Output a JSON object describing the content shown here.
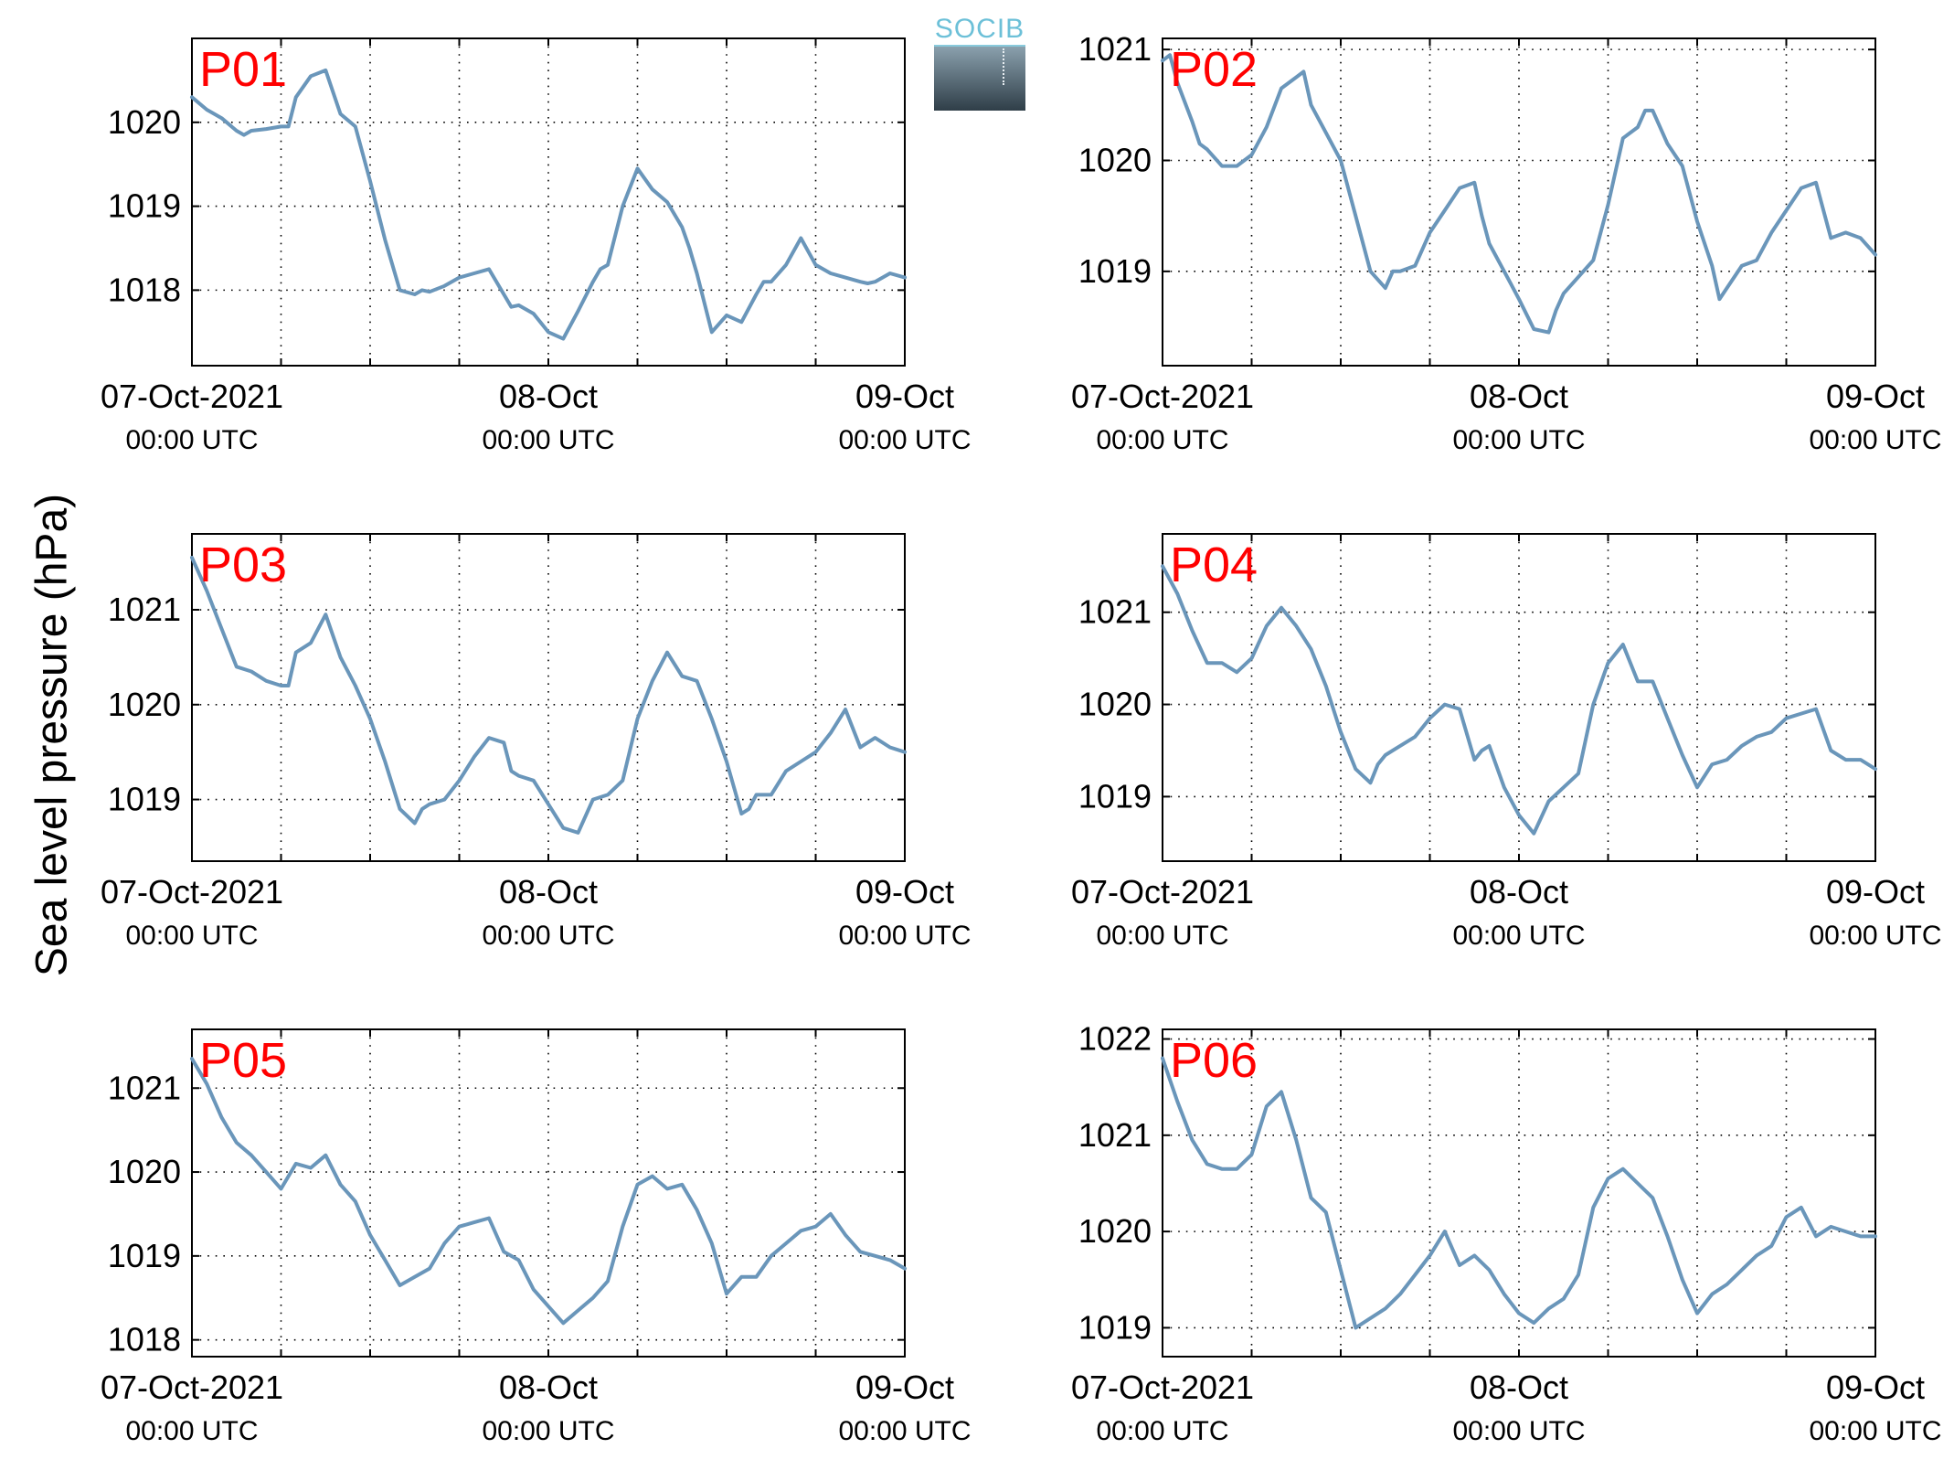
{
  "figure": {
    "ylabel": "Sea level pressure (hPa)",
    "logo_text": "SOCIB"
  },
  "colors": {
    "line": "#6a96ba",
    "panel_label": "#ff0000",
    "axis": "#000000",
    "grid": "#000000",
    "logo_text": "#6cc0d8",
    "logo_top": "#8aa0ad",
    "logo_bottom": "#2f3e48"
  },
  "chart_data": [
    {
      "type": "line",
      "label": "P01",
      "x_unit": "hours since 07-Oct-2021 00:00 UTC",
      "xlim": [
        0,
        48
      ],
      "xticks": [
        {
          "x": 0,
          "date": "07-Oct-2021",
          "time": "00:00 UTC"
        },
        {
          "x": 24,
          "date": "08-Oct",
          "time": "00:00 UTC"
        },
        {
          "x": 48,
          "date": "09-Oct",
          "time": "00:00 UTC"
        }
      ],
      "x_minor_grid": [
        6,
        12,
        18,
        30,
        36,
        42
      ],
      "ylim": [
        1017.1,
        1021.0
      ],
      "yticks": [
        1018,
        1019,
        1020
      ],
      "grid": true,
      "x": [
        0,
        1,
        2,
        3,
        3.5,
        4,
        5,
        6,
        6.5,
        7,
        8,
        9,
        10,
        11,
        12,
        13,
        14,
        15,
        15.5,
        16,
        17,
        18,
        19,
        20,
        21,
        21.5,
        22,
        23,
        24,
        25,
        26,
        27,
        27.5,
        28,
        29,
        30,
        31,
        32,
        33,
        33.5,
        34,
        35,
        36,
        37,
        38,
        38.5,
        39,
        40,
        41,
        42,
        43,
        44,
        45,
        45.5,
        46,
        47,
        48
      ],
      "y": [
        1020.3,
        1020.15,
        1020.05,
        1019.9,
        1019.85,
        1019.9,
        1019.92,
        1019.95,
        1019.95,
        1020.3,
        1020.55,
        1020.62,
        1020.1,
        1019.95,
        1019.3,
        1018.6,
        1018.0,
        1017.95,
        1018.0,
        1017.98,
        1018.05,
        1018.15,
        1018.2,
        1018.25,
        1017.95,
        1017.8,
        1017.82,
        1017.72,
        1017.5,
        1017.42,
        1017.75,
        1018.1,
        1018.25,
        1018.3,
        1019.0,
        1019.45,
        1019.2,
        1019.05,
        1018.75,
        1018.5,
        1018.2,
        1017.5,
        1017.7,
        1017.62,
        1017.95,
        1018.1,
        1018.1,
        1018.3,
        1018.62,
        1018.3,
        1018.2,
        1018.15,
        1018.1,
        1018.08,
        1018.1,
        1018.2,
        1018.15
      ]
    },
    {
      "type": "line",
      "label": "P02",
      "x_unit": "hours since 07-Oct-2021 00:00 UTC",
      "xlim": [
        0,
        48
      ],
      "xticks": [
        {
          "x": 0,
          "date": "07-Oct-2021",
          "time": "00:00 UTC"
        },
        {
          "x": 24,
          "date": "08-Oct",
          "time": "00:00 UTC"
        },
        {
          "x": 48,
          "date": "09-Oct",
          "time": "00:00 UTC"
        }
      ],
      "x_minor_grid": [
        6,
        12,
        18,
        30,
        36,
        42
      ],
      "ylim": [
        1018.15,
        1021.1
      ],
      "yticks": [
        1019,
        1020,
        1021
      ],
      "grid": true,
      "x": [
        0,
        0.5,
        1,
        2,
        2.5,
        3,
        4,
        5,
        6,
        7,
        8,
        9,
        9.5,
        10,
        11,
        12,
        13,
        14,
        15,
        15.5,
        16,
        17,
        18,
        19,
        20,
        21,
        21.5,
        22,
        23,
        24,
        25,
        26,
        26.5,
        27,
        28,
        29,
        30,
        31,
        32,
        32.5,
        33,
        34,
        35,
        36,
        37,
        37.5,
        38,
        39,
        40,
        41,
        42,
        43,
        44,
        45,
        46,
        47,
        48
      ],
      "y": [
        1020.9,
        1020.95,
        1020.7,
        1020.35,
        1020.15,
        1020.1,
        1019.95,
        1019.95,
        1020.05,
        1020.3,
        1020.65,
        1020.75,
        1020.8,
        1020.5,
        1020.25,
        1020.0,
        1019.5,
        1019.0,
        1018.85,
        1019.0,
        1019.0,
        1019.05,
        1019.35,
        1019.55,
        1019.75,
        1019.8,
        1019.5,
        1019.25,
        1019.0,
        1018.75,
        1018.48,
        1018.45,
        1018.65,
        1018.8,
        1018.95,
        1019.1,
        1019.6,
        1020.2,
        1020.3,
        1020.45,
        1020.45,
        1020.15,
        1019.95,
        1019.45,
        1019.05,
        1018.75,
        1018.85,
        1019.05,
        1019.1,
        1019.35,
        1019.55,
        1019.75,
        1019.8,
        1019.3,
        1019.35,
        1019.3,
        1019.15
      ]
    },
    {
      "type": "line",
      "label": "P03",
      "x_unit": "hours since 07-Oct-2021 00:00 UTC",
      "xlim": [
        0,
        48
      ],
      "xticks": [
        {
          "x": 0,
          "date": "07-Oct-2021",
          "time": "00:00 UTC"
        },
        {
          "x": 24,
          "date": "08-Oct",
          "time": "00:00 UTC"
        },
        {
          "x": 48,
          "date": "09-Oct",
          "time": "00:00 UTC"
        }
      ],
      "x_minor_grid": [
        6,
        12,
        18,
        30,
        36,
        42
      ],
      "ylim": [
        1018.35,
        1021.8
      ],
      "yticks": [
        1019,
        1020,
        1021
      ],
      "grid": true,
      "x": [
        0,
        1,
        2,
        3,
        4,
        5,
        6,
        6.5,
        7,
        8,
        9,
        10,
        11,
        12,
        13,
        14,
        15,
        15.5,
        16,
        17,
        18,
        19,
        20,
        21,
        21.5,
        22,
        23,
        24,
        25,
        26,
        27,
        28,
        29,
        30,
        31,
        32,
        33,
        34,
        35,
        36,
        37,
        37.5,
        38,
        39,
        40,
        41,
        42,
        43,
        44,
        45,
        46,
        47,
        48
      ],
      "y": [
        1021.55,
        1021.2,
        1020.8,
        1020.4,
        1020.35,
        1020.25,
        1020.2,
        1020.2,
        1020.55,
        1020.65,
        1020.95,
        1020.5,
        1020.2,
        1019.85,
        1019.4,
        1018.9,
        1018.75,
        1018.9,
        1018.95,
        1019.0,
        1019.2,
        1019.45,
        1019.65,
        1019.6,
        1019.3,
        1019.25,
        1019.2,
        1018.95,
        1018.7,
        1018.65,
        1019.0,
        1019.05,
        1019.2,
        1019.85,
        1020.25,
        1020.55,
        1020.3,
        1020.25,
        1019.85,
        1019.4,
        1018.85,
        1018.9,
        1019.05,
        1019.05,
        1019.3,
        1019.4,
        1019.5,
        1019.7,
        1019.95,
        1019.55,
        1019.65,
        1019.55,
        1019.5
      ]
    },
    {
      "type": "line",
      "label": "P04",
      "x_unit": "hours since 07-Oct-2021 00:00 UTC",
      "xlim": [
        0,
        48
      ],
      "xticks": [
        {
          "x": 0,
          "date": "07-Oct-2021",
          "time": "00:00 UTC"
        },
        {
          "x": 24,
          "date": "08-Oct",
          "time": "00:00 UTC"
        },
        {
          "x": 48,
          "date": "09-Oct",
          "time": "00:00 UTC"
        }
      ],
      "x_minor_grid": [
        6,
        12,
        18,
        30,
        36,
        42
      ],
      "ylim": [
        1018.3,
        1021.85
      ],
      "yticks": [
        1019,
        1020,
        1021
      ],
      "grid": true,
      "x": [
        0,
        1,
        2,
        3,
        4,
        5,
        6,
        7,
        8,
        9,
        10,
        11,
        12,
        13,
        14,
        14.5,
        15,
        16,
        17,
        18,
        19,
        20,
        21,
        21.5,
        22,
        23,
        24,
        25,
        26,
        27,
        28,
        29,
        30,
        31,
        32,
        33,
        34,
        35,
        36,
        37,
        38,
        39,
        40,
        41,
        42,
        43,
        44,
        45,
        46,
        47,
        48
      ],
      "y": [
        1021.5,
        1021.2,
        1020.8,
        1020.45,
        1020.45,
        1020.35,
        1020.5,
        1020.85,
        1021.05,
        1020.85,
        1020.6,
        1020.2,
        1019.7,
        1019.3,
        1019.15,
        1019.35,
        1019.45,
        1019.55,
        1019.65,
        1019.85,
        1020.0,
        1019.95,
        1019.4,
        1019.5,
        1019.55,
        1019.1,
        1018.8,
        1018.6,
        1018.95,
        1019.1,
        1019.25,
        1020.0,
        1020.45,
        1020.65,
        1020.25,
        1020.25,
        1019.85,
        1019.45,
        1019.1,
        1019.35,
        1019.4,
        1019.55,
        1019.65,
        1019.7,
        1019.85,
        1019.9,
        1019.95,
        1019.5,
        1019.4,
        1019.4,
        1019.3
      ]
    },
    {
      "type": "line",
      "label": "P05",
      "x_unit": "hours since 07-Oct-2021 00:00 UTC",
      "xlim": [
        0,
        48
      ],
      "xticks": [
        {
          "x": 0,
          "date": "07-Oct-2021",
          "time": "00:00 UTC"
        },
        {
          "x": 24,
          "date": "08-Oct",
          "time": "00:00 UTC"
        },
        {
          "x": 48,
          "date": "09-Oct",
          "time": "00:00 UTC"
        }
      ],
      "x_minor_grid": [
        6,
        12,
        18,
        30,
        36,
        42
      ],
      "ylim": [
        1017.8,
        1021.7
      ],
      "yticks": [
        1018,
        1019,
        1020,
        1021
      ],
      "grid": true,
      "x": [
        0,
        1,
        2,
        3,
        4,
        5,
        6,
        7,
        8,
        9,
        10,
        11,
        12,
        13,
        14,
        15,
        16,
        17,
        18,
        19,
        20,
        21,
        22,
        23,
        24,
        25,
        26,
        27,
        28,
        29,
        30,
        31,
        32,
        33,
        34,
        35,
        36,
        37,
        38,
        39,
        40,
        41,
        42,
        43,
        44,
        45,
        46,
        47,
        48
      ],
      "y": [
        1021.35,
        1021.05,
        1020.65,
        1020.35,
        1020.2,
        1020.0,
        1019.8,
        1020.1,
        1020.05,
        1020.2,
        1019.85,
        1019.65,
        1019.25,
        1018.95,
        1018.65,
        1018.75,
        1018.85,
        1019.15,
        1019.35,
        1019.4,
        1019.45,
        1019.05,
        1018.95,
        1018.6,
        1018.4,
        1018.2,
        1018.35,
        1018.5,
        1018.7,
        1019.35,
        1019.85,
        1019.95,
        1019.8,
        1019.85,
        1019.55,
        1019.15,
        1018.55,
        1018.75,
        1018.75,
        1019.0,
        1019.15,
        1019.3,
        1019.35,
        1019.5,
        1019.25,
        1019.05,
        1019.0,
        1018.95,
        1018.85
      ]
    },
    {
      "type": "line",
      "label": "P06",
      "x_unit": "hours since 07-Oct-2021 00:00 UTC",
      "xlim": [
        0,
        48
      ],
      "xticks": [
        {
          "x": 0,
          "date": "07-Oct-2021",
          "time": "00:00 UTC"
        },
        {
          "x": 24,
          "date": "08-Oct",
          "time": "00:00 UTC"
        },
        {
          "x": 48,
          "date": "09-Oct",
          "time": "00:00 UTC"
        }
      ],
      "x_minor_grid": [
        6,
        12,
        18,
        30,
        36,
        42
      ],
      "ylim": [
        1018.7,
        1022.1
      ],
      "yticks": [
        1019,
        1020,
        1021,
        1022
      ],
      "grid": true,
      "x": [
        0,
        1,
        2,
        3,
        4,
        5,
        6,
        7,
        8,
        9,
        10,
        11,
        12,
        13,
        14,
        15,
        16,
        17,
        18,
        19,
        20,
        21,
        22,
        23,
        24,
        25,
        26,
        27,
        28,
        29,
        30,
        31,
        32,
        33,
        34,
        35,
        36,
        37,
        38,
        39,
        40,
        41,
        42,
        43,
        44,
        45,
        46,
        47,
        48
      ],
      "y": [
        1021.8,
        1021.35,
        1020.95,
        1020.7,
        1020.65,
        1020.65,
        1020.8,
        1021.3,
        1021.45,
        1020.95,
        1020.35,
        1020.2,
        1019.6,
        1019.0,
        1019.1,
        1019.2,
        1019.35,
        1019.55,
        1019.75,
        1020.0,
        1019.65,
        1019.75,
        1019.6,
        1019.35,
        1019.15,
        1019.05,
        1019.2,
        1019.3,
        1019.55,
        1020.25,
        1020.55,
        1020.65,
        1020.5,
        1020.35,
        1019.95,
        1019.5,
        1019.15,
        1019.35,
        1019.45,
        1019.6,
        1019.75,
        1019.85,
        1020.15,
        1020.25,
        1019.95,
        1020.05,
        1020.0,
        1019.95,
        1019.95
      ]
    }
  ]
}
